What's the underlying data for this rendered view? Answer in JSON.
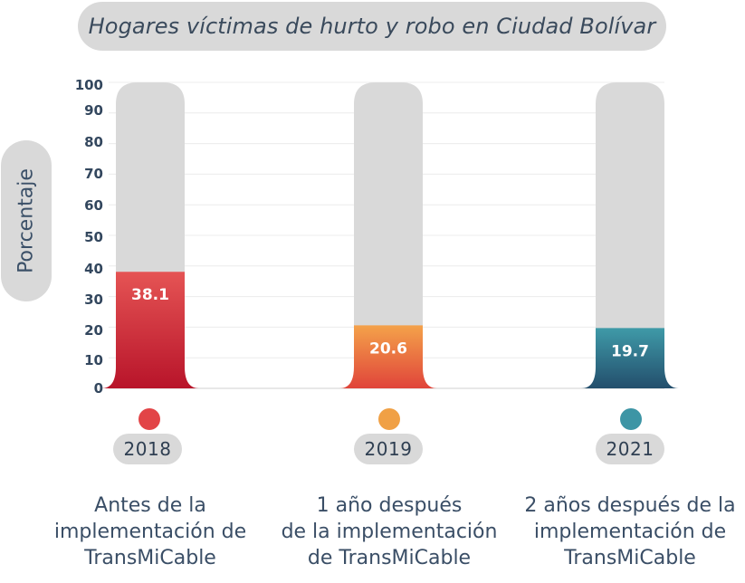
{
  "chart_data": {
    "type": "bar",
    "title": "Hogares víctimas de hurto y robo en Ciudad Bolívar",
    "ylabel": "Porcentaje",
    "xlabel": "",
    "ylim": [
      0,
      100
    ],
    "yticks": [
      "100",
      "90",
      "80",
      "70",
      "60",
      "50",
      "40",
      "30",
      "20",
      "10",
      "0"
    ],
    "categories": [
      "2018",
      "2019",
      "2021"
    ],
    "values": [
      38.1,
      20.6,
      19.7
    ],
    "value_labels": [
      "38.1",
      "20.6",
      "19.7"
    ],
    "descriptions": [
      [
        "Antes de la",
        "implementación de",
        "TransMiCable"
      ],
      [
        "1 año después",
        "de la implementación",
        "de TransMiCable"
      ],
      [
        "2 años después de la",
        "implementación de",
        "TransMiCable"
      ]
    ],
    "grid": true,
    "legend": "none"
  },
  "colors": {
    "bar_2018_top": "#e55454",
    "bar_2018_bottom": "#b8142a",
    "bar_2019_top": "#f4a24a",
    "bar_2019_bottom": "#e0443a",
    "bar_2021_top": "#3f9aa8",
    "bar_2021_bottom": "#234e6c",
    "track": "#d9d9d9",
    "dot_2018": "#e24447",
    "dot_2019": "#f0a045",
    "dot_2021": "#3d95a5"
  }
}
